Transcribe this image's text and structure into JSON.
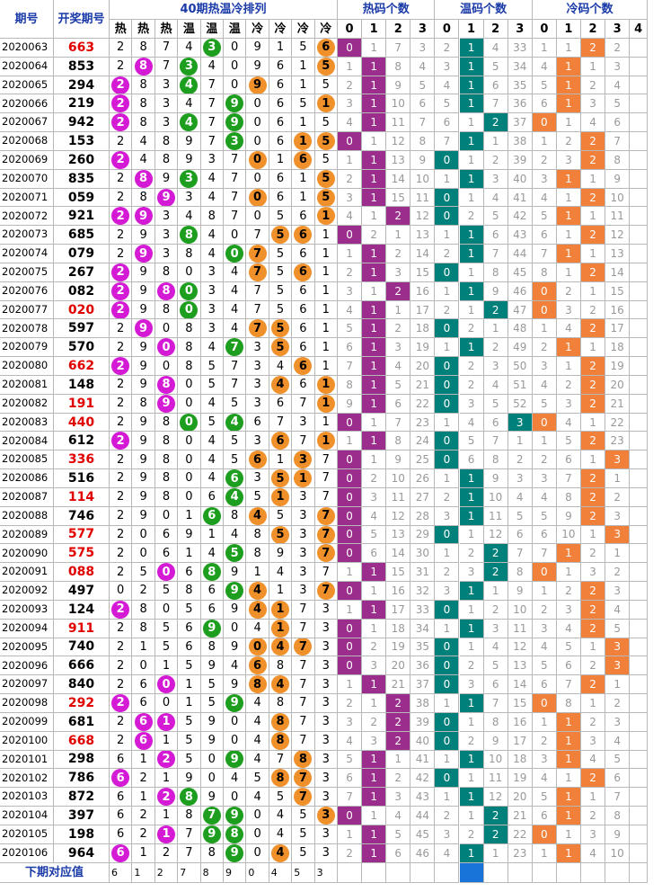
{
  "header": {
    "period": "期号",
    "draw": "开奖期号",
    "ranking_title": "40期热温冷排列",
    "hot_count_title": "热码个数",
    "warm_count_title": "温码个数",
    "cold_count_title": "冷码个数",
    "cat_labels": [
      "热",
      "热",
      "热",
      "温",
      "温",
      "温",
      "冷",
      "冷",
      "冷",
      "冷"
    ],
    "count_labels": [
      "0",
      "1",
      "2",
      "3"
    ],
    "cold_count_labels": [
      "0",
      "1",
      "2",
      "3",
      "4"
    ]
  },
  "rows": [
    {
      "p": "2020063",
      "n": "663",
      "r": true,
      "d": "2874309156",
      "b": [
        4,
        9
      ],
      "h": [
        "0",
        "1",
        "7",
        "3"
      ],
      "w": [
        "2",
        "1",
        "4",
        "33"
      ],
      "c": [
        "1",
        "1",
        "2",
        "2"
      ],
      "hs": 0,
      "ws": 1,
      "cs": 2
    },
    {
      "p": "2020064",
      "n": "853",
      "r": false,
      "d": "2873409615",
      "b": [
        1,
        3,
        9
      ],
      "h": [
        "1",
        "1",
        "8",
        "4"
      ],
      "w": [
        "3",
        "1",
        "5",
        "34"
      ],
      "c": [
        "4",
        "1",
        "1",
        "3"
      ],
      "hs": 1,
      "ws": 1,
      "cs": 1
    },
    {
      "p": "2020065",
      "n": "294",
      "r": false,
      "d": "2834709615",
      "b": [
        0,
        3,
        6
      ],
      "h": [
        "2",
        "1",
        "9",
        "5"
      ],
      "w": [
        "4",
        "1",
        "6",
        "35"
      ],
      "c": [
        "5",
        "1",
        "2",
        "4"
      ],
      "hs": 1,
      "ws": 1,
      "cs": 1
    },
    {
      "p": "2020066",
      "n": "219",
      "r": false,
      "d": "2834790651",
      "b": [
        0,
        5,
        9
      ],
      "h": [
        "3",
        "1",
        "10",
        "6"
      ],
      "w": [
        "5",
        "1",
        "7",
        "36"
      ],
      "c": [
        "6",
        "1",
        "3",
        "5"
      ],
      "hs": 1,
      "ws": 1,
      "cs": 1
    },
    {
      "p": "2020067",
      "n": "942",
      "r": false,
      "d": "2834790615",
      "b": [
        0,
        3,
        5
      ],
      "h": [
        "4",
        "1",
        "11",
        "7"
      ],
      "w": [
        "6",
        "1",
        "2",
        "37"
      ],
      "c": [
        "0",
        "1",
        "4",
        "6"
      ],
      "hs": 1,
      "ws": 2,
      "cs": 0
    },
    {
      "p": "2020068",
      "n": "153",
      "r": false,
      "d": "2489730615",
      "b": [
        5,
        8,
        9
      ],
      "h": [
        "0",
        "1",
        "12",
        "8"
      ],
      "w": [
        "7",
        "1",
        "1",
        "38"
      ],
      "c": [
        "1",
        "2",
        "2",
        "7"
      ],
      "hs": 0,
      "ws": 1,
      "cs": 2
    },
    {
      "p": "2020069",
      "n": "260",
      "r": false,
      "d": "2489370165",
      "b": [
        0,
        6,
        8
      ],
      "h": [
        "1",
        "1",
        "13",
        "9"
      ],
      "w": [
        "0",
        "1",
        "2",
        "39"
      ],
      "c": [
        "2",
        "3",
        "2",
        "8"
      ],
      "hs": 1,
      "ws": 0,
      "cs": 2
    },
    {
      "p": "2020070",
      "n": "835",
      "r": false,
      "d": "2893470615",
      "b": [
        1,
        3,
        9
      ],
      "h": [
        "2",
        "1",
        "14",
        "10"
      ],
      "w": [
        "1",
        "1",
        "3",
        "40"
      ],
      "c": [
        "3",
        "1",
        "1",
        "9"
      ],
      "hs": 1,
      "ws": 1,
      "cs": 1
    },
    {
      "p": "2020071",
      "n": "059",
      "r": false,
      "d": "2893470615",
      "b": [
        2,
        6,
        9
      ],
      "h": [
        "3",
        "1",
        "15",
        "11"
      ],
      "w": [
        "0",
        "1",
        "4",
        "41"
      ],
      "c": [
        "4",
        "1",
        "2",
        "10"
      ],
      "hs": 1,
      "ws": 0,
      "cs": 2
    },
    {
      "p": "2020072",
      "n": "921",
      "r": false,
      "d": "2934870561",
      "b": [
        0,
        1,
        9
      ],
      "h": [
        "4",
        "1",
        "2",
        "12"
      ],
      "w": [
        "0",
        "2",
        "5",
        "42"
      ],
      "c": [
        "5",
        "1",
        "1",
        "11"
      ],
      "hs": 2,
      "ws": 0,
      "cs": 1
    },
    {
      "p": "2020073",
      "n": "685",
      "r": false,
      "d": "2938407561",
      "b": [
        3,
        7,
        8
      ],
      "h": [
        "0",
        "2",
        "1",
        "13"
      ],
      "w": [
        "1",
        "1",
        "6",
        "43"
      ],
      "c": [
        "6",
        "1",
        "2",
        "12"
      ],
      "hs": 0,
      "ws": 1,
      "cs": 2
    },
    {
      "p": "2020074",
      "n": "079",
      "r": false,
      "d": "2938407561",
      "b": [
        1,
        5,
        6
      ],
      "h": [
        "1",
        "1",
        "2",
        "14"
      ],
      "w": [
        "2",
        "1",
        "7",
        "44"
      ],
      "c": [
        "7",
        "1",
        "1",
        "13"
      ],
      "hs": 1,
      "ws": 1,
      "cs": 1
    },
    {
      "p": "2020075",
      "n": "267",
      "r": false,
      "d": "2980347561",
      "b": [
        0,
        6,
        8
      ],
      "h": [
        "2",
        "1",
        "3",
        "15"
      ],
      "w": [
        "0",
        "1",
        "8",
        "45"
      ],
      "c": [
        "8",
        "1",
        "2",
        "14"
      ],
      "hs": 1,
      "ws": 0,
      "cs": 2
    },
    {
      "p": "2020076",
      "n": "082",
      "r": false,
      "d": "2980347561",
      "b": [
        0,
        2,
        3
      ],
      "h": [
        "3",
        "1",
        "2",
        "16"
      ],
      "w": [
        "1",
        "1",
        "9",
        "46"
      ],
      "c": [
        "0",
        "2",
        "1",
        "15"
      ],
      "hs": 2,
      "ws": 1,
      "cs": 0
    },
    {
      "p": "2020077",
      "n": "020",
      "r": true,
      "d": "2980347561",
      "b": [
        0,
        3
      ],
      "h": [
        "4",
        "1",
        "1",
        "17"
      ],
      "w": [
        "2",
        "1",
        "2",
        "47"
      ],
      "c": [
        "0",
        "3",
        "2",
        "16"
      ],
      "hs": 1,
      "ws": 2,
      "cs": 0
    },
    {
      "p": "2020078",
      "n": "597",
      "r": false,
      "d": "2908347561",
      "b": [
        1,
        6,
        7
      ],
      "h": [
        "5",
        "1",
        "2",
        "18"
      ],
      "w": [
        "0",
        "2",
        "1",
        "48"
      ],
      "c": [
        "1",
        "4",
        "2",
        "17"
      ],
      "hs": 1,
      "ws": 0,
      "cs": 2
    },
    {
      "p": "2020079",
      "n": "570",
      "r": false,
      "d": "2908473561",
      "b": [
        2,
        5,
        7
      ],
      "h": [
        "6",
        "1",
        "3",
        "19"
      ],
      "w": [
        "1",
        "1",
        "2",
        "49"
      ],
      "c": [
        "2",
        "1",
        "1",
        "18"
      ],
      "hs": 1,
      "ws": 1,
      "cs": 1
    },
    {
      "p": "2020080",
      "n": "662",
      "r": true,
      "d": "2908573461",
      "b": [
        0,
        8
      ],
      "h": [
        "7",
        "1",
        "4",
        "20"
      ],
      "w": [
        "0",
        "2",
        "3",
        "50"
      ],
      "c": [
        "3",
        "1",
        "2",
        "19"
      ],
      "hs": 1,
      "ws": 0,
      "cs": 2
    },
    {
      "p": "2020081",
      "n": "148",
      "r": false,
      "d": "2980573461",
      "b": [
        2,
        7,
        9
      ],
      "h": [
        "8",
        "1",
        "5",
        "21"
      ],
      "w": [
        "0",
        "2",
        "4",
        "51"
      ],
      "c": [
        "4",
        "2",
        "2",
        "20"
      ],
      "hs": 1,
      "ws": 0,
      "cs": 2
    },
    {
      "p": "2020082",
      "n": "191",
      "r": true,
      "d": "2890453671",
      "b": [
        2,
        9
      ],
      "h": [
        "9",
        "1",
        "6",
        "22"
      ],
      "w": [
        "0",
        "3",
        "5",
        "52"
      ],
      "c": [
        "5",
        "3",
        "2",
        "21"
      ],
      "hs": 1,
      "ws": 0,
      "cs": 2
    },
    {
      "p": "2020083",
      "n": "440",
      "r": true,
      "d": "2980546731",
      "b": [
        3,
        5
      ],
      "h": [
        "0",
        "1",
        "7",
        "23"
      ],
      "w": [
        "1",
        "4",
        "6",
        "3"
      ],
      "c": [
        "0",
        "4",
        "1",
        "22"
      ],
      "hs": 0,
      "ws": 3,
      "cs": 0
    },
    {
      "p": "2020084",
      "n": "612",
      "r": false,
      "d": "2980453671",
      "b": [
        0,
        7,
        9
      ],
      "h": [
        "1",
        "1",
        "8",
        "24"
      ],
      "w": [
        "0",
        "5",
        "7",
        "1"
      ],
      "c": [
        "1",
        "5",
        "2",
        "23"
      ],
      "hs": 1,
      "ws": 0,
      "cs": 2
    },
    {
      "p": "2020085",
      "n": "336",
      "r": true,
      "d": "2980456137",
      "b": [
        6,
        8
      ],
      "h": [
        "0",
        "1",
        "9",
        "25"
      ],
      "w": [
        "0",
        "6",
        "8",
        "2"
      ],
      "c": [
        "2",
        "6",
        "1",
        "3"
      ],
      "hs": 0,
      "ws": 0,
      "cs": 3
    },
    {
      "p": "2020086",
      "n": "516",
      "r": false,
      "d": "2980463517",
      "b": [
        5,
        7,
        8
      ],
      "h": [
        "0",
        "2",
        "10",
        "26"
      ],
      "w": [
        "1",
        "1",
        "9",
        "3"
      ],
      "c": [
        "3",
        "7",
        "2",
        "1"
      ],
      "hs": 0,
      "ws": 1,
      "cs": 2
    },
    {
      "p": "2020087",
      "n": "114",
      "r": true,
      "d": "2980645137",
      "b": [
        5,
        7
      ],
      "h": [
        "0",
        "3",
        "11",
        "27"
      ],
      "w": [
        "2",
        "1",
        "10",
        "4"
      ],
      "c": [
        "4",
        "8",
        "2",
        "2"
      ],
      "hs": 0,
      "ws": 1,
      "cs": 2
    },
    {
      "p": "2020088",
      "n": "746",
      "r": false,
      "d": "2901684537",
      "b": [
        4,
        6,
        9
      ],
      "h": [
        "0",
        "4",
        "12",
        "28"
      ],
      "w": [
        "3",
        "1",
        "11",
        "5"
      ],
      "c": [
        "5",
        "9",
        "2",
        "3"
      ],
      "hs": 0,
      "ws": 1,
      "cs": 2
    },
    {
      "p": "2020089",
      "n": "577",
      "r": true,
      "d": "2069148537",
      "b": [
        7,
        9
      ],
      "h": [
        "0",
        "5",
        "13",
        "29"
      ],
      "w": [
        "0",
        "1",
        "12",
        "6"
      ],
      "c": [
        "6",
        "10",
        "1",
        "3"
      ],
      "hs": 0,
      "ws": 0,
      "cs": 3
    },
    {
      "p": "2020090",
      "n": "575",
      "r": true,
      "d": "2061458937",
      "b": [
        5,
        9
      ],
      "h": [
        "0",
        "6",
        "14",
        "30"
      ],
      "w": [
        "1",
        "2",
        "2",
        "7"
      ],
      "c": [
        "7",
        "1",
        "2",
        "1"
      ],
      "hs": 0,
      "ws": 2,
      "cs": 1
    },
    {
      "p": "2020091",
      "n": "088",
      "r": true,
      "d": "2506891437",
      "b": [
        2,
        4
      ],
      "h": [
        "1",
        "1",
        "15",
        "31"
      ],
      "w": [
        "2",
        "3",
        "2",
        "8"
      ],
      "c": [
        "0",
        "1",
        "3",
        "2"
      ],
      "hs": 1,
      "ws": 2,
      "cs": 0
    },
    {
      "p": "2020092",
      "n": "497",
      "r": false,
      "d": "0258694137",
      "b": [
        5,
        6,
        9
      ],
      "h": [
        "0",
        "1",
        "16",
        "32"
      ],
      "w": [
        "3",
        "1",
        "1",
        "9"
      ],
      "c": [
        "1",
        "2",
        "2",
        "3"
      ],
      "hs": 0,
      "ws": 1,
      "cs": 2
    },
    {
      "p": "2020093",
      "n": "124",
      "r": false,
      "d": "2805694173",
      "b": [
        0,
        6,
        7
      ],
      "h": [
        "1",
        "1",
        "17",
        "33"
      ],
      "w": [
        "0",
        "1",
        "2",
        "10"
      ],
      "c": [
        "2",
        "3",
        "2",
        "4"
      ],
      "hs": 1,
      "ws": 0,
      "cs": 2
    },
    {
      "p": "2020094",
      "n": "911",
      "r": true,
      "d": "2856904173",
      "b": [
        4,
        7
      ],
      "h": [
        "0",
        "1",
        "18",
        "34"
      ],
      "w": [
        "1",
        "1",
        "3",
        "11"
      ],
      "c": [
        "3",
        "4",
        "2",
        "5"
      ],
      "hs": 0,
      "ws": 1,
      "cs": 2
    },
    {
      "p": "2020095",
      "n": "740",
      "r": false,
      "d": "2156890473",
      "b": [
        6,
        7,
        8
      ],
      "h": [
        "0",
        "2",
        "19",
        "35"
      ],
      "w": [
        "0",
        "1",
        "4",
        "12"
      ],
      "c": [
        "4",
        "5",
        "1",
        "3"
      ],
      "hs": 0,
      "ws": 0,
      "cs": 3
    },
    {
      "p": "2020096",
      "n": "666",
      "r": false,
      "d": "2015946873",
      "b": [
        6
      ],
      "h": [
        "0",
        "3",
        "20",
        "36"
      ],
      "w": [
        "0",
        "2",
        "5",
        "13"
      ],
      "c": [
        "5",
        "6",
        "2",
        "3"
      ],
      "hs": 0,
      "ws": 0,
      "cs": 3
    },
    {
      "p": "2020097",
      "n": "840",
      "r": false,
      "d": "2601598473",
      "b": [
        2,
        6,
        7
      ],
      "h": [
        "1",
        "1",
        "21",
        "37"
      ],
      "w": [
        "0",
        "3",
        "6",
        "14"
      ],
      "c": [
        "6",
        "7",
        "2",
        "1"
      ],
      "hs": 1,
      "ws": 0,
      "cs": 2
    },
    {
      "p": "2020098",
      "n": "292",
      "r": true,
      "d": "2601594873",
      "b": [
        0,
        5
      ],
      "h": [
        "2",
        "1",
        "2",
        "38"
      ],
      "w": [
        "1",
        "1",
        "7",
        "15"
      ],
      "c": [
        "0",
        "8",
        "1",
        "2"
      ],
      "hs": 2,
      "ws": 1,
      "cs": 0
    },
    {
      "p": "2020099",
      "n": "681",
      "r": false,
      "d": "2615904873",
      "b": [
        1,
        2,
        7
      ],
      "h": [
        "3",
        "2",
        "2",
        "39"
      ],
      "w": [
        "0",
        "1",
        "8",
        "16"
      ],
      "c": [
        "1",
        "1",
        "2",
        "3"
      ],
      "hs": 2,
      "ws": 0,
      "cs": 1
    },
    {
      "p": "2020100",
      "n": "668",
      "r": true,
      "d": "2615904873",
      "b": [
        1,
        7
      ],
      "h": [
        "4",
        "3",
        "2",
        "40"
      ],
      "w": [
        "0",
        "2",
        "9",
        "17"
      ],
      "c": [
        "2",
        "1",
        "3",
        "4"
      ],
      "hs": 2,
      "ws": 0,
      "cs": 1
    },
    {
      "p": "2020101",
      "n": "298",
      "r": false,
      "d": "6125094783",
      "b": [
        2,
        5,
        8
      ],
      "h": [
        "5",
        "1",
        "1",
        "41"
      ],
      "w": [
        "1",
        "1",
        "10",
        "18"
      ],
      "c": [
        "3",
        "1",
        "4",
        "5"
      ],
      "hs": 1,
      "ws": 1,
      "cs": 1
    },
    {
      "p": "2020102",
      "n": "786",
      "r": false,
      "d": "6219045873",
      "b": [
        0,
        7,
        8
      ],
      "h": [
        "6",
        "1",
        "2",
        "42"
      ],
      "w": [
        "0",
        "1",
        "11",
        "19"
      ],
      "c": [
        "4",
        "1",
        "2",
        "6"
      ],
      "hs": 1,
      "ws": 0,
      "cs": 2
    },
    {
      "p": "2020103",
      "n": "872",
      "r": false,
      "d": "6128904573",
      "b": [
        2,
        3,
        8
      ],
      "h": [
        "7",
        "1",
        "3",
        "43"
      ],
      "w": [
        "1",
        "1",
        "12",
        "20"
      ],
      "c": [
        "5",
        "1",
        "1",
        "7"
      ],
      "hs": 1,
      "ws": 1,
      "cs": 1
    },
    {
      "p": "2020104",
      "n": "397",
      "r": false,
      "d": "6218790453",
      "b": [
        4,
        5,
        9
      ],
      "h": [
        "0",
        "1",
        "4",
        "44"
      ],
      "w": [
        "2",
        "1",
        "2",
        "21"
      ],
      "c": [
        "6",
        "1",
        "2",
        "8"
      ],
      "hs": 0,
      "ws": 2,
      "cs": 1
    },
    {
      "p": "2020105",
      "n": "198",
      "r": false,
      "d": "6217980453",
      "b": [
        2,
        4,
        5
      ],
      "h": [
        "1",
        "1",
        "5",
        "45"
      ],
      "w": [
        "3",
        "2",
        "2",
        "22"
      ],
      "c": [
        "0",
        "1",
        "3",
        "9"
      ],
      "hs": 1,
      "ws": 2,
      "cs": 0
    },
    {
      "p": "2020106",
      "n": "964",
      "r": false,
      "d": "6127890453",
      "b": [
        0,
        5,
        7
      ],
      "h": [
        "2",
        "1",
        "6",
        "46"
      ],
      "w": [
        "4",
        "1",
        "1",
        "23"
      ],
      "c": [
        "1",
        "1",
        "4",
        "10"
      ],
      "hs": 1,
      "ws": 1,
      "cs": 1
    }
  ],
  "footer": {
    "label": "下期对应值",
    "values": [
      "6",
      "1",
      "2",
      "7",
      "8",
      "9",
      "0",
      "4",
      "5",
      "3"
    ]
  },
  "colors": {
    "hot_ball": "#d41ad4",
    "warm_ball": "#1e9e1e",
    "cold_ball": "#f0902a",
    "hot_count": "#9b2d8c",
    "warm_count": "#00807a",
    "cold_count": "#f0803a",
    "header_text": "#1a3aa8",
    "red_number": "#e00000"
  }
}
